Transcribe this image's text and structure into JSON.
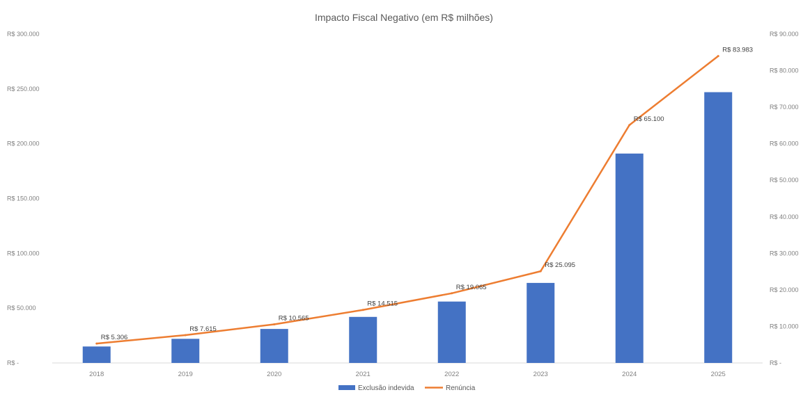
{
  "chart_data": {
    "type": "bar",
    "title": "Impacto Fiscal Negativo (em R$ milhões)",
    "categories": [
      "2018",
      "2019",
      "2020",
      "2021",
      "2022",
      "2023",
      "2024",
      "2025"
    ],
    "series": [
      {
        "name": "Exclusão indevida",
        "type": "bar",
        "axis": "left",
        "color": "#4472C4",
        "values": [
          15000,
          22000,
          31000,
          42000,
          56000,
          73000,
          191000,
          247000
        ]
      },
      {
        "name": "Renúncia",
        "type": "line",
        "axis": "right",
        "color": "#ED7D31",
        "values": [
          5306,
          7615,
          10565,
          14515,
          19065,
          25095,
          65100,
          83983
        ],
        "labels": [
          "R$ 5.306",
          "R$ 7.615",
          "R$ 10.565",
          "R$ 14.515",
          "R$ 19.065",
          "R$ 25.095",
          "R$ 65.100",
          "R$ 83.983"
        ]
      }
    ],
    "left_axis": {
      "ylim": [
        0,
        300000
      ],
      "tick_values": [
        0,
        50000,
        100000,
        150000,
        200000,
        250000,
        300000
      ],
      "tick_labels": [
        "R$ -",
        "R$ 50.000",
        "R$ 100.000",
        "R$ 150.000",
        "R$ 200.000",
        "R$ 250.000",
        "R$ 300.000"
      ]
    },
    "right_axis": {
      "ylim": [
        0,
        90000
      ],
      "tick_values": [
        0,
        10000,
        20000,
        30000,
        40000,
        50000,
        60000,
        70000,
        80000,
        90000
      ],
      "tick_labels": [
        "R$ -",
        "R$ 10.000",
        "R$ 20.000",
        "R$ 30.000",
        "R$ 40.000",
        "R$ 50.000",
        "R$ 60.000",
        "R$ 70.000",
        "R$ 80.000",
        "R$ 90.000"
      ]
    },
    "grid": false,
    "legend": "bottom"
  }
}
